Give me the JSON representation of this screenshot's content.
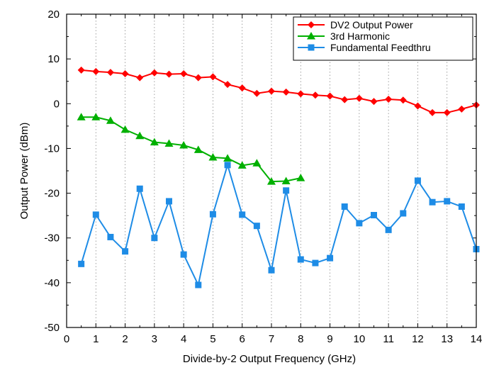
{
  "chart_data": {
    "type": "line",
    "title": "",
    "xlabel": "Divide-by-2 Output Frequency (GHz)",
    "ylabel": "Output Power (dBm)",
    "xlim": [
      0,
      14
    ],
    "ylim": [
      -50,
      20
    ],
    "xticks": [
      0,
      1,
      2,
      3,
      4,
      5,
      6,
      7,
      8,
      9,
      10,
      11,
      12,
      13,
      14
    ],
    "yticks": [
      -50,
      -40,
      -30,
      -20,
      -10,
      0,
      10,
      20
    ],
    "grid": "vertical-dotted",
    "legend_position": "top-right",
    "series": [
      {
        "name": "DV2 Output Power",
        "color": "#ff0000",
        "marker": "diamond",
        "x": [
          0.5,
          1,
          1.5,
          2,
          2.5,
          3,
          3.5,
          4,
          4.5,
          5,
          5.5,
          6,
          6.5,
          7,
          7.5,
          8,
          8.5,
          9,
          9.5,
          10,
          10.5,
          11,
          11.5,
          12,
          12.5,
          13,
          13.5,
          14
        ],
        "y": [
          7.5,
          7.2,
          7.0,
          6.7,
          5.8,
          6.9,
          6.6,
          6.7,
          5.8,
          6.0,
          4.3,
          3.5,
          2.3,
          2.8,
          2.6,
          2.2,
          1.9,
          1.7,
          0.9,
          1.2,
          0.5,
          1.0,
          0.8,
          -0.5,
          -2.0,
          -2.0,
          -1.2,
          -0.3
        ]
      },
      {
        "name": "3rd Harmonic",
        "color": "#00b000",
        "marker": "triangle",
        "x": [
          0.5,
          1,
          1.5,
          2,
          2.5,
          3,
          3.5,
          4,
          4.5,
          5,
          5.5,
          6,
          6.5,
          7,
          7.5,
          8
        ],
        "y": [
          -3.0,
          -3.0,
          -3.8,
          -5.8,
          -7.2,
          -8.6,
          -8.9,
          -9.3,
          -10.3,
          -12.0,
          -12.2,
          -13.8,
          -13.3,
          -17.4,
          -17.3,
          -16.6
        ]
      },
      {
        "name": "Fundamental Feedthru",
        "color": "#1e8ce6",
        "marker": "square",
        "x": [
          0.5,
          1,
          1.5,
          2,
          2.5,
          3,
          3.5,
          4,
          4.5,
          5,
          5.5,
          6,
          6.5,
          7,
          7.5,
          8,
          8.5,
          9,
          9.5,
          10,
          10.5,
          11,
          11.5,
          12,
          12.5,
          13,
          13.5,
          14
        ],
        "y": [
          -35.8,
          -24.8,
          -29.8,
          -33.0,
          -19.0,
          -30.0,
          -21.8,
          -33.7,
          -40.5,
          -24.7,
          -13.7,
          -24.8,
          -27.3,
          -37.2,
          -19.4,
          -34.8,
          -35.6,
          -34.5,
          -23.0,
          -26.7,
          -24.9,
          -28.2,
          -24.5,
          -17.2,
          -22.0,
          -21.8,
          -23.0,
          -32.5
        ]
      }
    ]
  }
}
